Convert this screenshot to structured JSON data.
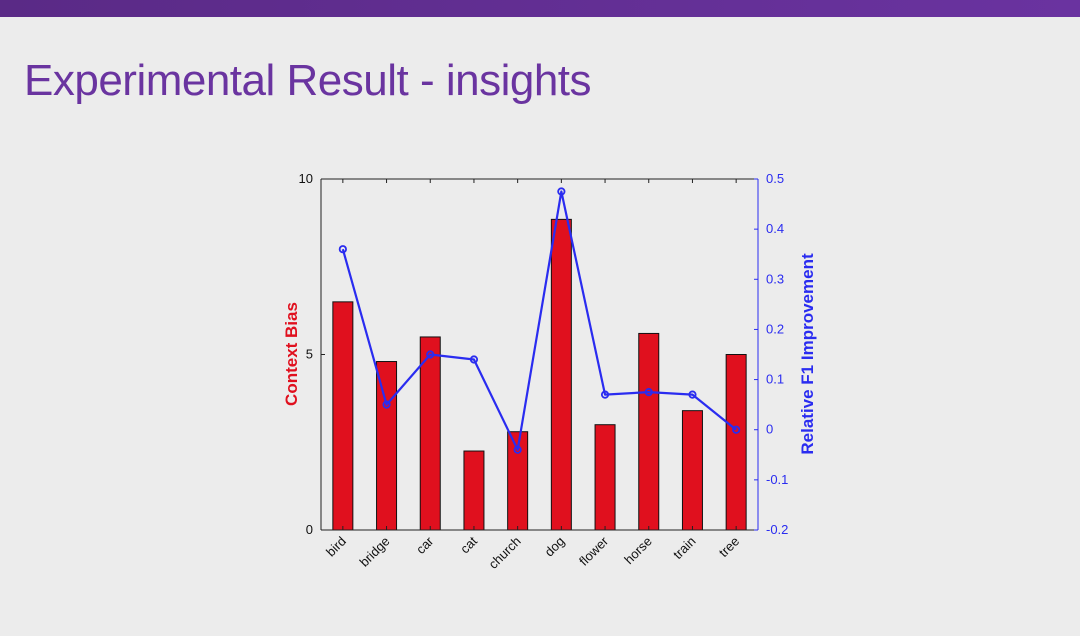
{
  "slide": {
    "title": "Experimental Result - insights",
    "accent_color": "#6a34a0"
  },
  "chart_data": {
    "type": "bar",
    "categories": [
      "bird",
      "bridge",
      "car",
      "cat",
      "church",
      "dog",
      "flower",
      "horse",
      "train",
      "tree"
    ],
    "series": [
      {
        "name": "Context Bias",
        "type": "bar",
        "axis": "left",
        "color": "#e0101e",
        "values": [
          6.5,
          4.8,
          5.5,
          2.25,
          2.8,
          8.85,
          3.0,
          5.6,
          3.4,
          5.0
        ]
      },
      {
        "name": "Relative F1 Improvement",
        "type": "line",
        "axis": "right",
        "color": "#2a2cf0",
        "values": [
          0.36,
          0.05,
          0.15,
          0.14,
          -0.04,
          0.475,
          0.07,
          0.075,
          0.07,
          0.0
        ]
      }
    ],
    "ylabel": "Context Bias",
    "ylabel_color": "#e0101e",
    "y2label": "Relative F1 Improvement",
    "y2label_color": "#2a2cf0",
    "ylim": [
      0,
      10
    ],
    "y2lim": [
      -0.2,
      0.5
    ],
    "yticks": [
      "0",
      "5",
      "10"
    ],
    "y2ticks": [
      "-0.2",
      "-0.1",
      "0",
      "0.1",
      "0.2",
      "0.3",
      "0.4",
      "0.5"
    ],
    "grid": false
  }
}
